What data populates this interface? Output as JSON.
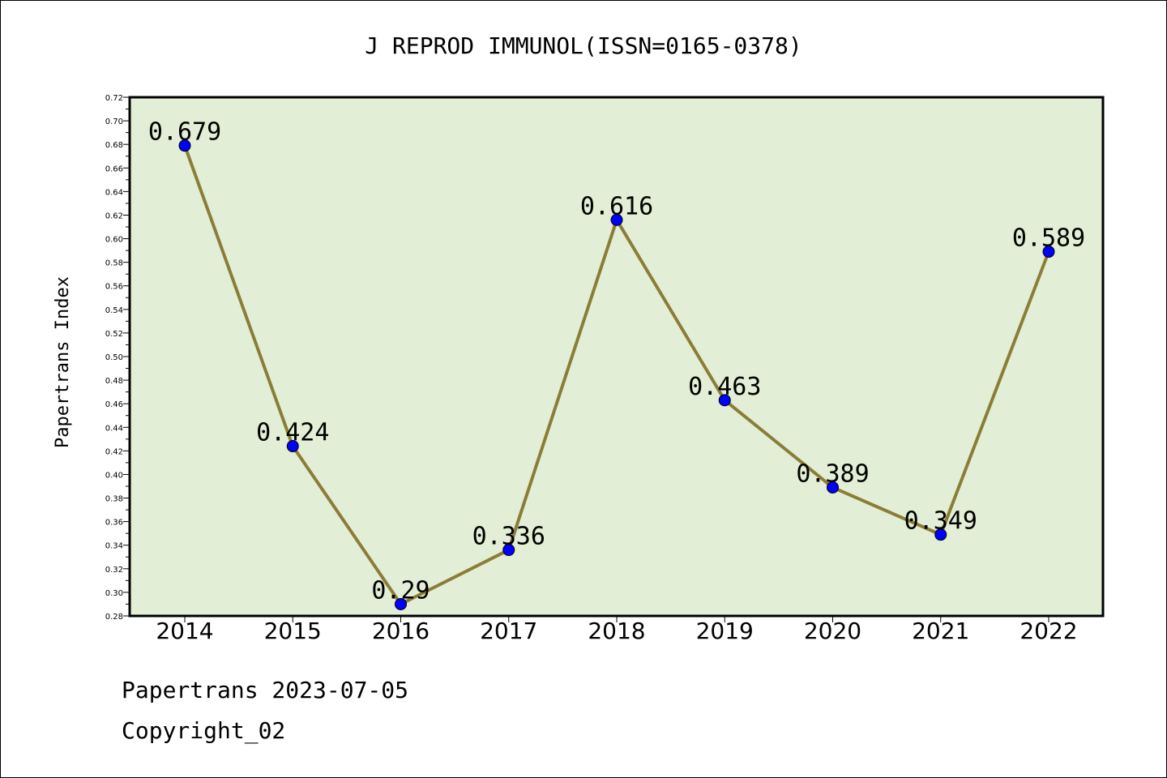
{
  "chart_data": {
    "type": "line",
    "title": "J REPROD IMMUNOL(ISSN=0165-0378)",
    "xlabel": "",
    "ylabel": "Papertrans Index",
    "categories": [
      "2014",
      "2015",
      "2016",
      "2017",
      "2018",
      "2019",
      "2020",
      "2021",
      "2022"
    ],
    "values": [
      0.679,
      0.424,
      0.29,
      0.336,
      0.616,
      0.463,
      0.389,
      0.349,
      0.589
    ],
    "data_labels": [
      "0.679",
      "0.424",
      "0.29",
      "0.336",
      "0.616",
      "0.463",
      "0.389",
      "0.349",
      "0.589"
    ],
    "ylim": [
      0.28,
      0.72
    ],
    "yticks": [
      "0.28",
      "0.30",
      "0.32",
      "0.34",
      "0.36",
      "0.38",
      "0.40",
      "0.42",
      "0.44",
      "0.46",
      "0.48",
      "0.50",
      "0.52",
      "0.54",
      "0.56",
      "0.58",
      "0.60",
      "0.62",
      "0.64",
      "0.66",
      "0.68",
      "0.70",
      "0.72"
    ],
    "grid": false,
    "colors": {
      "plot_background": "#e2efd6",
      "line": "#8b7d37",
      "marker": "#0000ff"
    }
  },
  "footer": {
    "line1": "Papertrans 2023-07-05",
    "line2": "Copyright_02"
  }
}
